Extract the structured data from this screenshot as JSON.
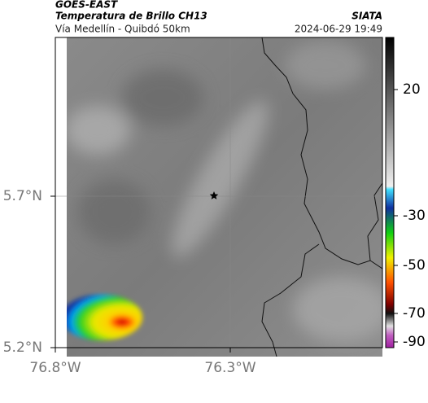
{
  "header": {
    "source": "GOES-EAST",
    "title": "Temperatura de Brillo CH13",
    "subtitle": "Vía Medellín - Quibdó 50km",
    "agency": "SIATA",
    "datetime": "2024-06-29 19:49"
  },
  "axes": {
    "y_labels": [
      "5.7°N",
      "5.2°N"
    ],
    "x_labels": [
      "76.8°W",
      "76.3°W"
    ]
  },
  "colorbar": {
    "ticks": [
      20,
      -30,
      -50,
      -70,
      -90
    ]
  }
}
